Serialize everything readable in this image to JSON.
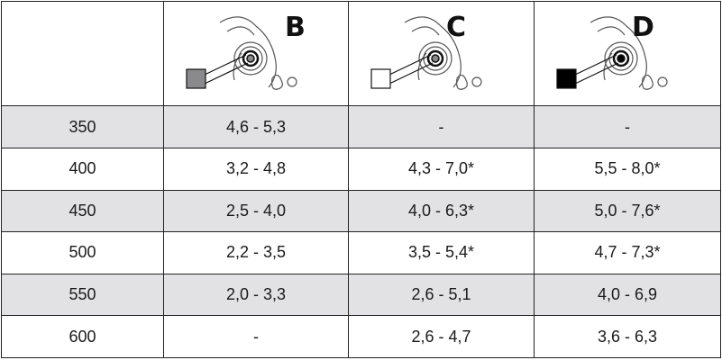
{
  "header": {
    "columns": [
      {
        "letter": "B",
        "swatch_color": "#8a8a8c"
      },
      {
        "letter": "C",
        "swatch_color": "#ffffff"
      },
      {
        "letter": "D",
        "swatch_color": "#000000"
      }
    ]
  },
  "rows": [
    {
      "label": "350",
      "b": "4,6 - 5,3",
      "c": "-",
      "d": "-"
    },
    {
      "label": "400",
      "b": "3,2 - 4,8",
      "c": "4,3 - 7,0*",
      "d": "5,5 - 8,0*"
    },
    {
      "label": "450",
      "b": "2,5 - 4,0",
      "c": "4,0 - 6,3*",
      "d": "5,0 - 7,6*"
    },
    {
      "label": "500",
      "b": "2,2 - 3,5",
      "c": "3,5 - 5,4*",
      "d": "4,7 - 7,3*"
    },
    {
      "label": "550",
      "b": "2,0 - 3,3",
      "c": "2,6 - 5,1",
      "d": "4,0 - 6,9"
    },
    {
      "label": "600",
      "b": "-",
      "c": "2,6 - 4,7",
      "d": "3,6 - 6,3"
    }
  ]
}
